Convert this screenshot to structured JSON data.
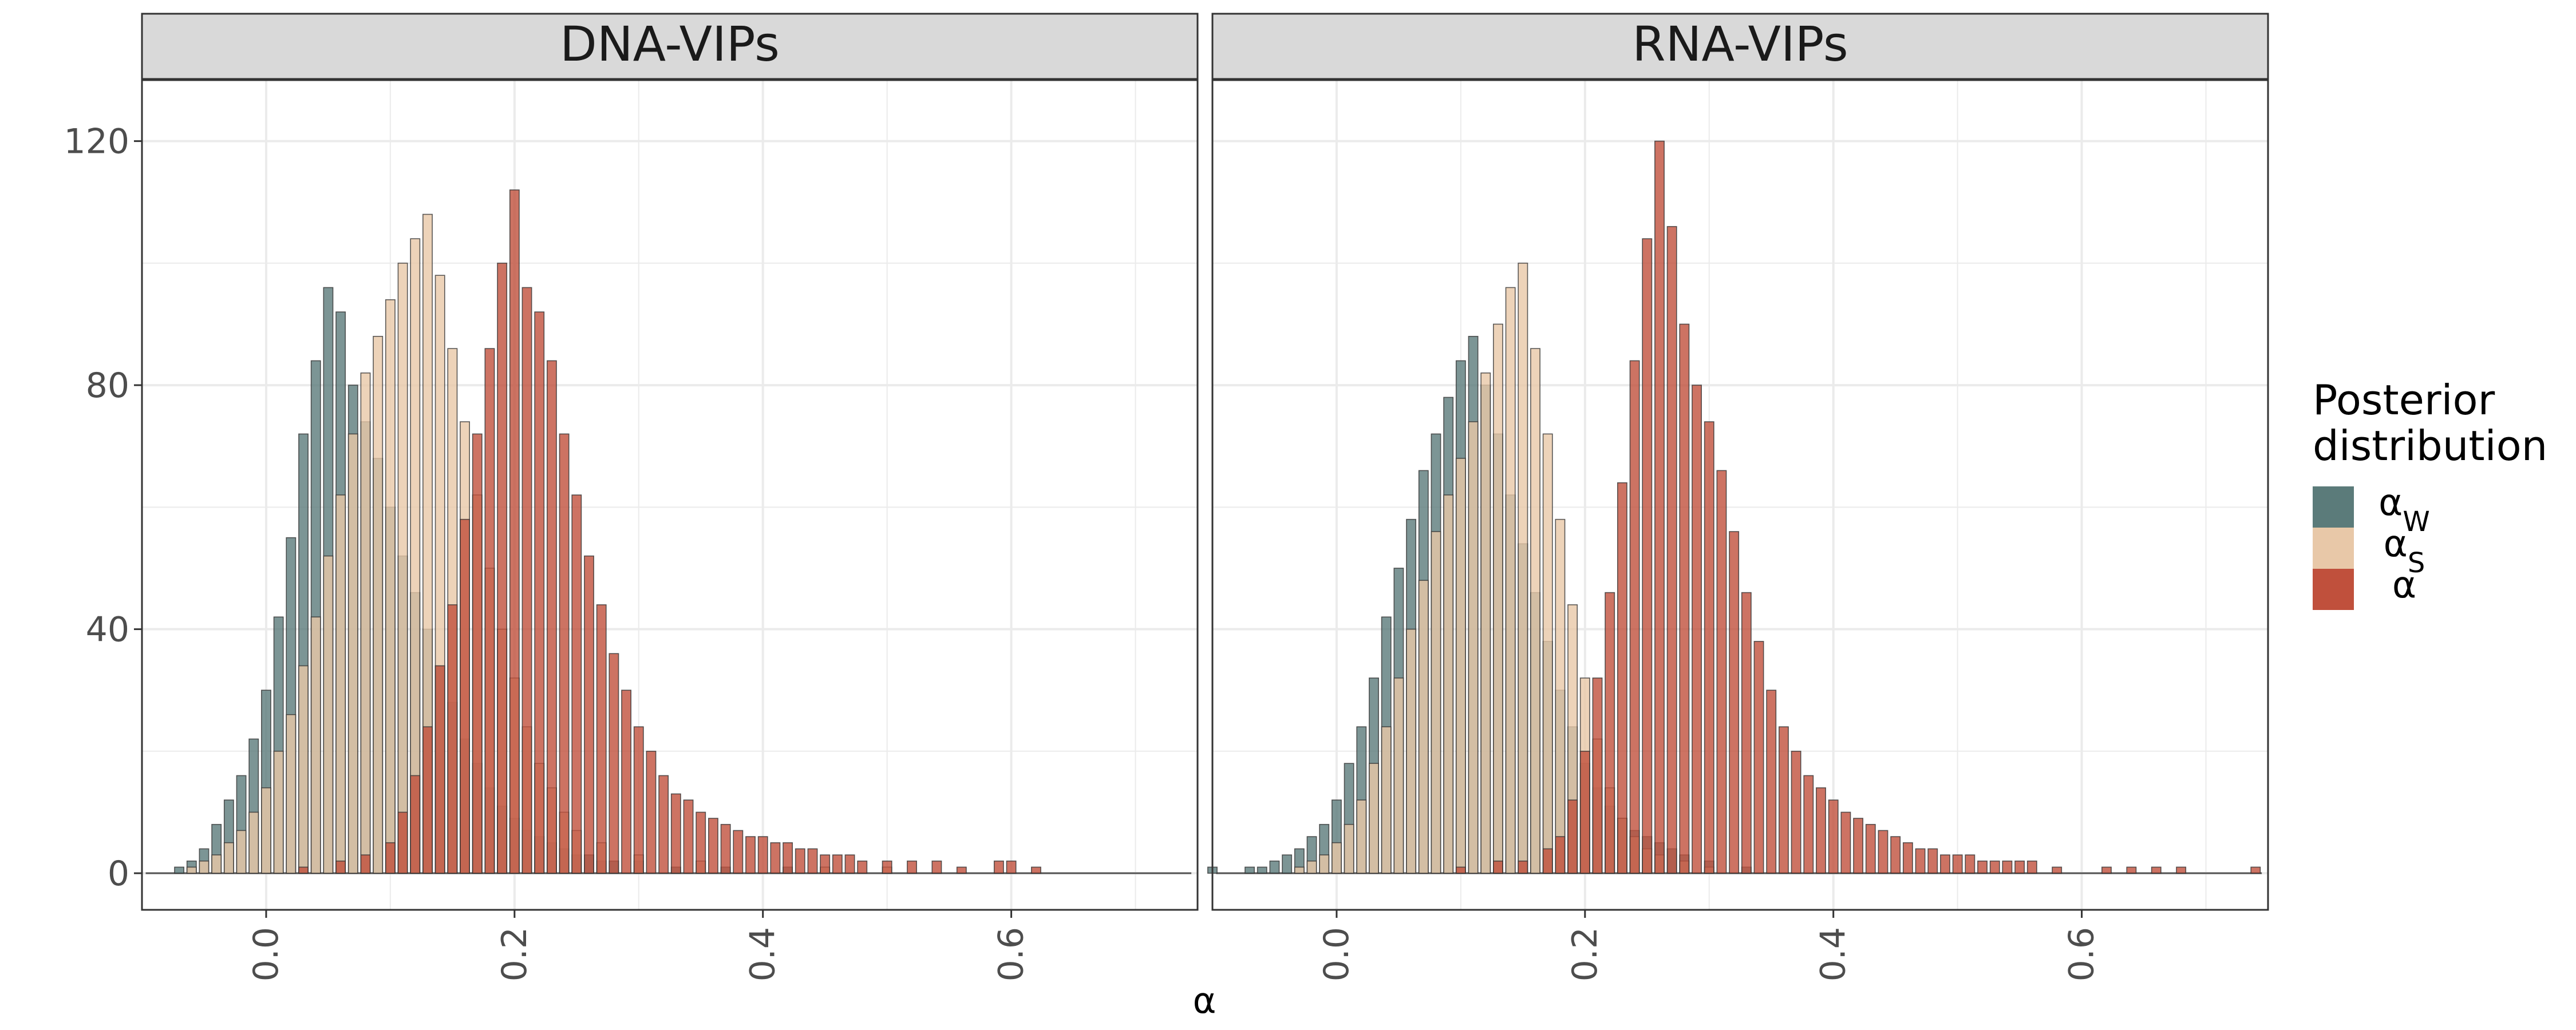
{
  "chart_data": {
    "type": "histogram",
    "xlabel": "α",
    "ylabel": "",
    "legend": {
      "title_lines": [
        "Posterior",
        "distribution"
      ],
      "position": "right",
      "entries": [
        {
          "id": "aw",
          "label": "α",
          "subscript": "W",
          "color": "#5b7b7a"
        },
        {
          "id": "as",
          "label": "α",
          "subscript": "S",
          "color": "#e8c8a8"
        },
        {
          "id": "a",
          "label": "α",
          "subscript": "",
          "color": "#c0503c"
        }
      ]
    },
    "grid": true,
    "xlim": [
      -0.1,
      0.75
    ],
    "ylim": [
      -6,
      130
    ],
    "x_ticks": [
      0.0,
      0.2,
      0.4,
      0.6
    ],
    "x_tick_labels": [
      "0.0",
      "0.2",
      "0.4",
      "0.6"
    ],
    "y_ticks": [
      0,
      40,
      80,
      120
    ],
    "y_tick_labels": [
      "0",
      "40",
      "80",
      "120"
    ],
    "bin_width": 0.0075,
    "panels": [
      {
        "title": "DNA-VIPs",
        "series": [
          {
            "ref": "aw",
            "x": [
              -0.07,
              -0.06,
              -0.05,
              -0.04,
              -0.03,
              -0.02,
              -0.01,
              0.0,
              0.01,
              0.02,
              0.03,
              0.04,
              0.05,
              0.06,
              0.07,
              0.08,
              0.09,
              0.1,
              0.11,
              0.12,
              0.13,
              0.14,
              0.15,
              0.16,
              0.17,
              0.18,
              0.19,
              0.2,
              0.21,
              0.22,
              0.23,
              0.24,
              0.25,
              0.26,
              0.27,
              0.28,
              0.3,
              0.33,
              0.37,
              0.42
            ],
            "y": [
              1,
              2,
              4,
              8,
              12,
              16,
              22,
              30,
              42,
              55,
              72,
              84,
              96,
              92,
              80,
              74,
              68,
              60,
              52,
              46,
              40,
              34,
              28,
              22,
              18,
              14,
              11,
              9,
              7,
              6,
              5,
              4,
              3,
              3,
              2,
              2,
              2,
              1,
              1,
              1
            ]
          },
          {
            "ref": "as",
            "x": [
              -0.06,
              -0.05,
              -0.04,
              -0.03,
              -0.02,
              -0.01,
              0.0,
              0.01,
              0.02,
              0.03,
              0.04,
              0.05,
              0.06,
              0.07,
              0.08,
              0.09,
              0.1,
              0.11,
              0.12,
              0.13,
              0.14,
              0.15,
              0.16,
              0.17,
              0.18,
              0.19,
              0.2,
              0.21,
              0.22,
              0.23,
              0.24,
              0.25,
              0.27,
              0.3,
              0.35,
              0.45,
              0.5
            ],
            "y": [
              1,
              2,
              3,
              5,
              7,
              10,
              14,
              20,
              26,
              34,
              42,
              52,
              62,
              72,
              82,
              88,
              94,
              100,
              104,
              108,
              98,
              86,
              74,
              62,
              50,
              40,
              32,
              24,
              18,
              14,
              10,
              7,
              5,
              3,
              2,
              1,
              1
            ]
          },
          {
            "ref": "a",
            "x": [
              0.03,
              0.06,
              0.08,
              0.1,
              0.11,
              0.12,
              0.13,
              0.14,
              0.15,
              0.16,
              0.17,
              0.18,
              0.19,
              0.2,
              0.21,
              0.22,
              0.23,
              0.24,
              0.25,
              0.26,
              0.27,
              0.28,
              0.29,
              0.3,
              0.31,
              0.32,
              0.33,
              0.34,
              0.35,
              0.36,
              0.37,
              0.38,
              0.39,
              0.4,
              0.41,
              0.42,
              0.43,
              0.44,
              0.45,
              0.46,
              0.47,
              0.48,
              0.5,
              0.52,
              0.54,
              0.56,
              0.59,
              0.6,
              0.62
            ],
            "y": [
              1,
              2,
              3,
              5,
              10,
              16,
              24,
              34,
              44,
              58,
              72,
              86,
              100,
              112,
              96,
              92,
              84,
              72,
              62,
              52,
              44,
              36,
              30,
              24,
              20,
              16,
              13,
              12,
              10,
              9,
              8,
              7,
              6,
              6,
              5,
              5,
              4,
              4,
              3,
              3,
              3,
              2,
              2,
              2,
              2,
              1,
              2,
              2,
              1
            ]
          }
        ]
      },
      {
        "title": "RNA-VIPs",
        "series": [
          {
            "ref": "aw",
            "x": [
              -0.1,
              -0.07,
              -0.06,
              -0.05,
              -0.04,
              -0.03,
              -0.02,
              -0.01,
              0.0,
              0.01,
              0.02,
              0.03,
              0.04,
              0.05,
              0.06,
              0.07,
              0.08,
              0.09,
              0.1,
              0.11,
              0.12,
              0.13,
              0.14,
              0.15,
              0.16,
              0.17,
              0.18,
              0.19,
              0.2,
              0.21,
              0.22,
              0.23,
              0.24,
              0.25,
              0.26,
              0.27,
              0.28,
              0.3,
              0.33
            ],
            "y": [
              1,
              1,
              1,
              2,
              3,
              4,
              6,
              8,
              12,
              18,
              24,
              32,
              42,
              50,
              58,
              66,
              72,
              78,
              84,
              88,
              80,
              72,
              62,
              54,
              46,
              38,
              30,
              24,
              18,
              14,
              11,
              9,
              7,
              6,
              5,
              4,
              3,
              2,
              1
            ]
          },
          {
            "ref": "as",
            "x": [
              -0.03,
              -0.02,
              -0.01,
              0.0,
              0.01,
              0.02,
              0.03,
              0.04,
              0.05,
              0.06,
              0.07,
              0.08,
              0.09,
              0.1,
              0.11,
              0.12,
              0.13,
              0.14,
              0.15,
              0.16,
              0.17,
              0.18,
              0.19,
              0.2,
              0.21,
              0.22,
              0.23,
              0.24,
              0.25,
              0.26,
              0.28,
              0.3
            ],
            "y": [
              1,
              2,
              3,
              5,
              8,
              12,
              18,
              24,
              32,
              40,
              48,
              56,
              62,
              68,
              74,
              82,
              90,
              96,
              100,
              86,
              72,
              58,
              44,
              32,
              22,
              14,
              9,
              6,
              4,
              3,
              2,
              1
            ]
          },
          {
            "ref": "a",
            "x": [
              0.1,
              0.13,
              0.15,
              0.17,
              0.18,
              0.19,
              0.2,
              0.21,
              0.22,
              0.23,
              0.24,
              0.25,
              0.26,
              0.27,
              0.28,
              0.29,
              0.3,
              0.31,
              0.32,
              0.33,
              0.34,
              0.35,
              0.36,
              0.37,
              0.38,
              0.39,
              0.4,
              0.41,
              0.42,
              0.43,
              0.44,
              0.45,
              0.46,
              0.47,
              0.48,
              0.49,
              0.5,
              0.51,
              0.52,
              0.53,
              0.54,
              0.55,
              0.56,
              0.58,
              0.62,
              0.64,
              0.66,
              0.68,
              0.74
            ],
            "y": [
              1,
              2,
              2,
              4,
              6,
              12,
              20,
              32,
              46,
              64,
              84,
              104,
              120,
              106,
              90,
              80,
              74,
              66,
              56,
              46,
              38,
              30,
              24,
              20,
              16,
              14,
              12,
              10,
              9,
              8,
              7,
              6,
              5,
              4,
              4,
              3,
              3,
              3,
              2,
              2,
              2,
              2,
              2,
              1,
              1,
              1,
              1,
              1,
              1
            ]
          }
        ]
      }
    ]
  }
}
